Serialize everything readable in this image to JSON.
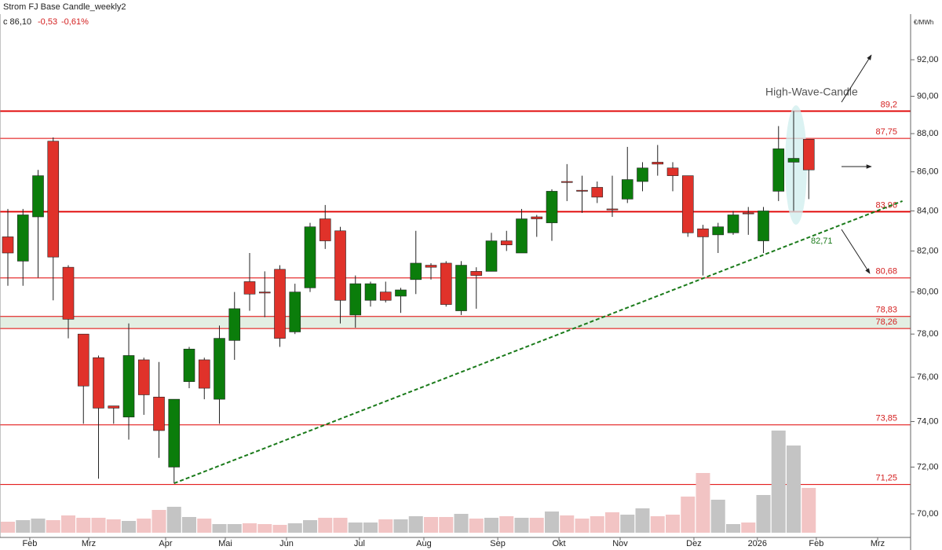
{
  "chart_data": {
    "type": "candlestick",
    "title": "Strom FJ Base Candle_weekly2",
    "close_label": "c 86,10",
    "change": "-0,53",
    "change_pct": "-0,61%",
    "unit": "€/MWh",
    "log_scale": true,
    "ylim": [
      68.82,
      94.56
    ],
    "yticks": [
      {
        "value": 70,
        "label": "70,00"
      },
      {
        "value": 72,
        "label": "72,00"
      },
      {
        "value": 74,
        "label": "74,00"
      },
      {
        "value": 76,
        "label": "76,00"
      },
      {
        "value": 78,
        "label": "78,00"
      },
      {
        "value": 80,
        "label": "80,00"
      },
      {
        "value": 82,
        "label": "82,00"
      },
      {
        "value": 84,
        "label": "84,00"
      },
      {
        "value": 86,
        "label": "86,00"
      },
      {
        "value": 88,
        "label": "88,00"
      },
      {
        "value": 90,
        "label": "90,00"
      },
      {
        "value": 92,
        "label": "92,00"
      }
    ],
    "xlim": [
      -0.52,
      59.74
    ],
    "xticks": [
      {
        "value": 1.45,
        "label": "Feb"
      },
      {
        "value": 5.35,
        "label": "Mrz"
      },
      {
        "value": 10.44,
        "label": "Apr"
      },
      {
        "value": 14.39,
        "label": "Mai"
      },
      {
        "value": 18.44,
        "label": "Jun"
      },
      {
        "value": 23.27,
        "label": "Jul"
      },
      {
        "value": 27.53,
        "label": "Aug"
      },
      {
        "value": 32.42,
        "label": "Sep"
      },
      {
        "value": 36.47,
        "label": "Okt"
      },
      {
        "value": 40.52,
        "label": "Nov"
      },
      {
        "value": 45.4,
        "label": "Dez"
      },
      {
        "value": 49.6,
        "label": "2026"
      },
      {
        "value": 53.5,
        "label": "Feb"
      },
      {
        "value": 57.56,
        "label": "Mrz"
      }
    ],
    "up_color": "#0b7d0b",
    "down_color": "#e0322a",
    "volume_up_color": "#c4c4c4",
    "volume_down_color": "#f2c4c4",
    "candles": {
      "open": [
        82.7,
        81.5,
        83.7,
        87.6,
        81.2,
        78.0,
        76.9,
        74.7,
        74.2,
        76.8,
        75.1,
        72.0,
        75.8,
        76.8,
        75.0,
        77.7,
        80.5,
        80.0,
        81.1,
        78.1,
        80.2,
        83.6,
        83.0,
        78.9,
        79.6,
        80.0,
        79.8,
        80.6,
        81.3,
        81.4,
        79.1,
        81.0,
        81.0,
        82.5,
        81.9,
        83.7,
        83.4,
        85.5,
        85.05,
        85.2,
        84.1,
        84.6,
        85.5,
        86.5,
        86.2,
        85.8,
        83.1,
        82.8,
        82.9,
        83.9,
        82.5,
        85.0,
        86.5,
        87.7
      ],
      "high": [
        84.1,
        84.1,
        86.1,
        87.8,
        81.3,
        78.0,
        77.0,
        74.7,
        78.5,
        76.9,
        76.7,
        75.0,
        77.4,
        76.9,
        78.4,
        80.0,
        81.9,
        81.0,
        81.3,
        80.4,
        83.4,
        84.3,
        83.2,
        80.8,
        80.5,
        80.5,
        80.2,
        83.0,
        81.4,
        81.5,
        81.5,
        81.2,
        82.9,
        83.0,
        84.1,
        83.8,
        85.1,
        86.4,
        85.8,
        85.5,
        85.8,
        87.3,
        86.5,
        87.4,
        86.5,
        85.8,
        83.3,
        83.4,
        84.0,
        84.2,
        84.2,
        88.4,
        89.2,
        87.7
      ],
      "low": [
        80.3,
        80.3,
        80.7,
        79.6,
        77.8,
        73.9,
        71.5,
        73.9,
        73.2,
        74.3,
        72.4,
        71.3,
        75.5,
        75.0,
        73.9,
        76.8,
        79.1,
        78.8,
        77.4,
        78.0,
        80.0,
        82.1,
        78.5,
        78.3,
        79.3,
        79.5,
        79.0,
        79.9,
        80.6,
        79.3,
        78.9,
        79.2,
        81.0,
        82.0,
        81.9,
        82.7,
        82.5,
        84.5,
        83.9,
        84.4,
        83.7,
        84.4,
        85.0,
        85.8,
        85.0,
        82.7,
        80.8,
        81.9,
        82.8,
        82.8,
        81.9,
        84.5,
        84.0,
        84.6
      ],
      "close": [
        81.9,
        83.8,
        85.8,
        81.7,
        78.7,
        75.6,
        74.6,
        74.6,
        77.0,
        75.2,
        73.6,
        75.0,
        77.3,
        75.5,
        77.8,
        79.2,
        79.9,
        79.95,
        77.8,
        80.0,
        83.2,
        82.5,
        79.6,
        80.4,
        80.4,
        79.6,
        80.1,
        81.4,
        81.2,
        79.4,
        81.3,
        80.8,
        82.5,
        82.3,
        83.6,
        83.6,
        85.0,
        85.45,
        85.0,
        84.7,
        84.05,
        85.6,
        86.2,
        86.4,
        85.8,
        82.9,
        82.7,
        83.2,
        83.8,
        83.85,
        84.0,
        87.2,
        86.7,
        86.1
      ]
    },
    "volume": [
      14,
      16,
      18,
      16,
      22,
      19,
      19,
      17,
      15,
      18,
      29,
      33,
      20,
      18,
      11,
      11,
      12,
      11,
      10,
      12,
      16,
      19,
      19,
      13,
      13,
      17,
      17,
      21,
      20,
      20,
      24,
      18,
      19,
      21,
      19,
      19,
      27,
      22,
      18,
      21,
      26,
      23,
      31,
      21,
      23,
      46,
      76,
      42,
      11,
      13,
      48,
      130,
      111,
      57
    ],
    "levels": {
      "values": [
        89.2,
        87.75,
        83.96,
        80.68,
        78.83,
        78.26,
        73.85,
        71.25
      ],
      "value_labels": [
        "89,2",
        "87,75",
        "83,96",
        "80,68",
        "78,83",
        "78,26",
        "73,85",
        "71,25"
      ],
      "color": "#e00000",
      "band_color": "#e3efe3"
    },
    "trendline": {
      "x": [
        11,
        59.2
      ],
      "values": [
        71.3,
        84.5
      ],
      "color": "#1a7a1a",
      "label": "82,71"
    },
    "annotation": "High-Wave-Candle"
  }
}
